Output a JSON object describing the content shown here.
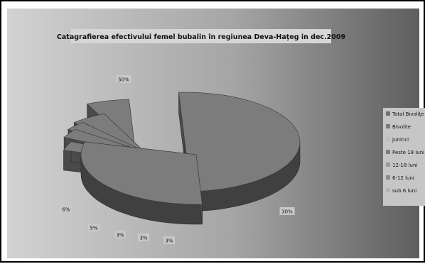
{
  "chart_data": {
    "type": "pie",
    "title": "Catagrafierea efectivului femel bubalin în  regiunea Deva-Haţeg in dec.2009",
    "categories": [
      "Total Bivoliţe",
      "Bivolite",
      "Juninci",
      "Peste 18 luni",
      "12-18 luni",
      "6-12 luni",
      "sub 6 luni"
    ],
    "values": [
      50,
      30,
      3,
      3,
      3,
      5,
      6
    ],
    "data_labels": [
      "50%",
      "30%",
      "3%",
      "3%",
      "3%",
      "5%",
      "6%"
    ],
    "legend_position": "right",
    "style": "3d exploded",
    "colors": {
      "background_light": "#d2d2d2",
      "background_dark": "#5e5e5e",
      "slice_top": "#7c7c7c",
      "slice_side": "#404040",
      "legend_swatches": [
        "#6f6f6f",
        "#7a7a7a",
        "#bfbfbf",
        "#7e7e7e",
        "#9a9a9a",
        "#8a8a8a",
        "#b5b5b5"
      ]
    }
  }
}
